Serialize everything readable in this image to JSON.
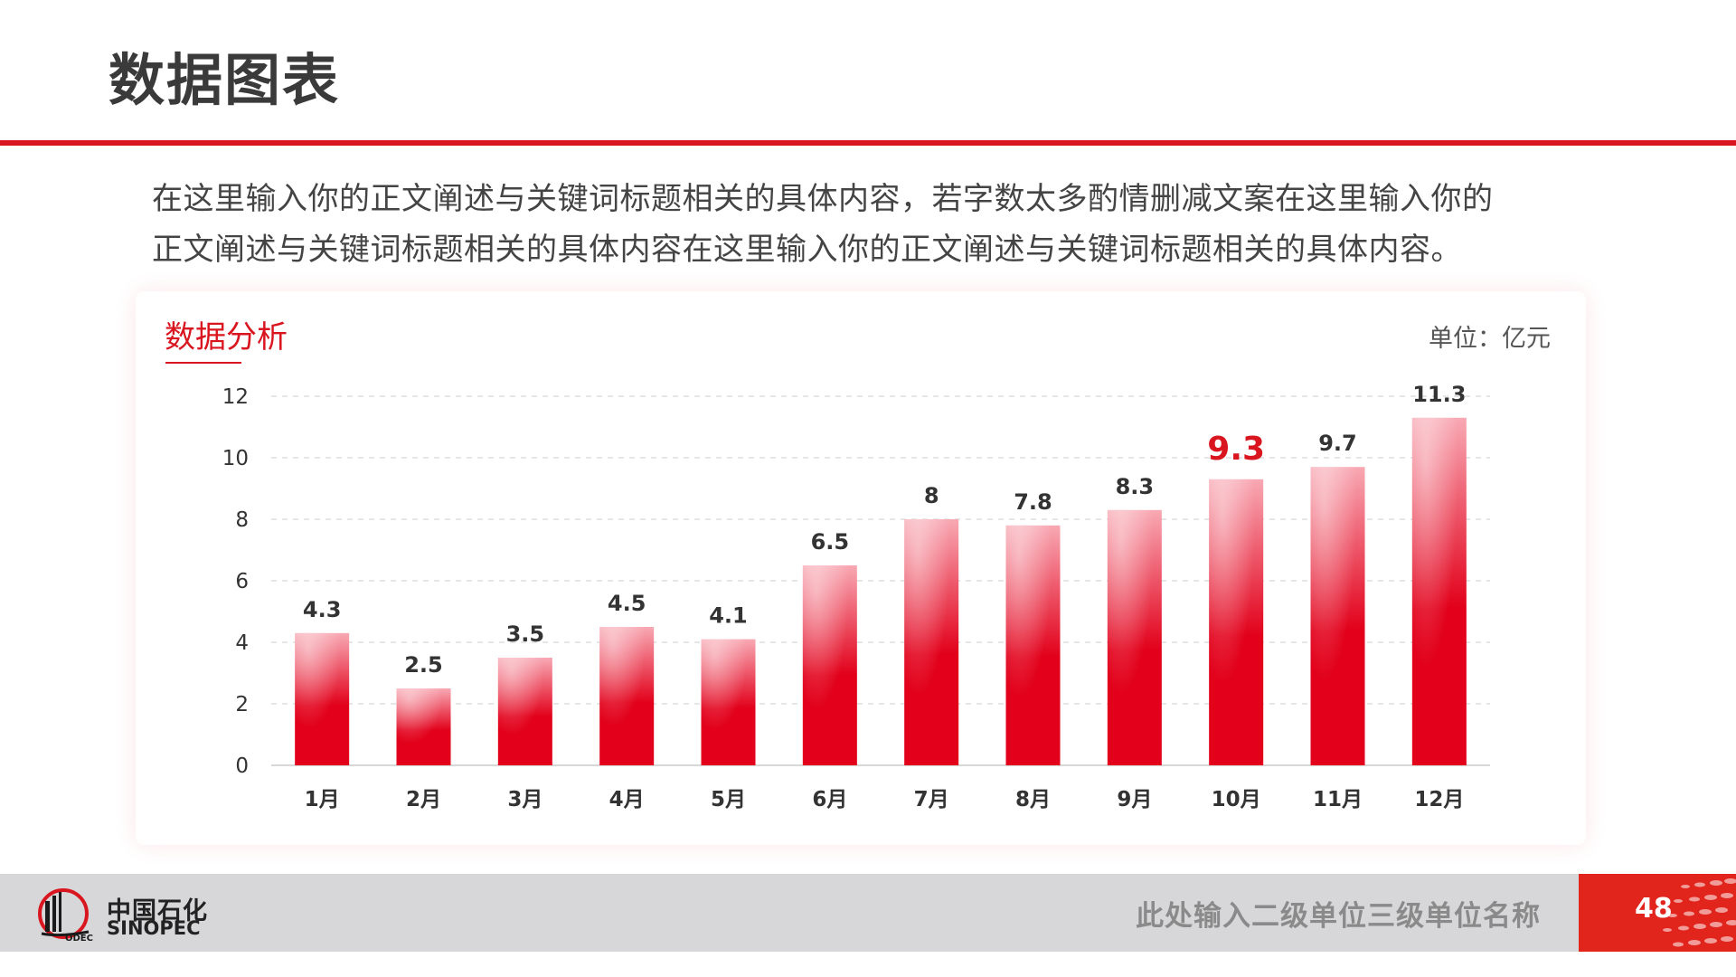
{
  "page": {
    "title": "数据图表",
    "intro_line1": "在这里输入你的正文阐述与关键词标题相关的具体内容，若字数太多酌情删减文案在这里输入你的",
    "intro_line2": "正文阐述与关键词标题相关的具体内容在这里输入你的正文阐述与关键词标题相关的具体内容。"
  },
  "card": {
    "title": "数据分析",
    "unit": "单位：亿元"
  },
  "footer": {
    "brand_cn": "中国石化",
    "brand_en": "SINOPEC",
    "unit_name": "此处输入二级单位三级单位名称",
    "page_number": "48"
  },
  "colors": {
    "accent": "#d9161f",
    "bar_top": "#f8a9b4",
    "bar_bottom": "#e2001a",
    "grid": "#d8d8d8",
    "footer_bg": "#d7d7d9"
  },
  "chart_data": {
    "type": "bar",
    "categories": [
      "1月",
      "2月",
      "3月",
      "4月",
      "5月",
      "6月",
      "7月",
      "8月",
      "9月",
      "10月",
      "11月",
      "12月"
    ],
    "values": [
      4.3,
      2.5,
      3.5,
      4.5,
      4.1,
      6.5,
      8,
      7.8,
      8.3,
      9.3,
      9.7,
      11.3
    ],
    "value_labels": [
      "4.3",
      "2.5",
      "3.5",
      "4.5",
      "4.1",
      "6.5",
      "8",
      "7.8",
      "8.3",
      "9.3",
      "9.7",
      "11.3"
    ],
    "highlight_index": 9,
    "ylim": [
      0,
      12
    ],
    "yticks": [
      "0",
      "2",
      "4",
      "6",
      "8",
      "10",
      "12"
    ],
    "title": "数据分析",
    "unit": "单位：亿元",
    "grid": "dashed horizontal",
    "legend": "none"
  }
}
